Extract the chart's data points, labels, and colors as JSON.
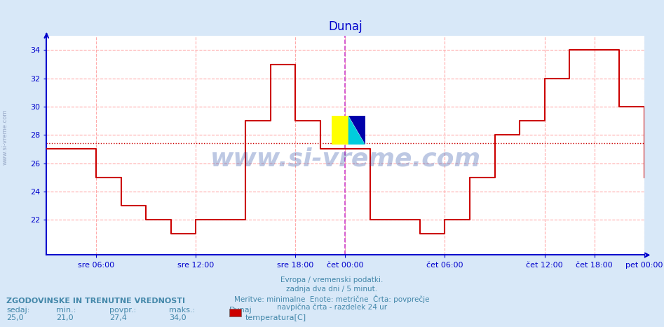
{
  "title": "Dunaj",
  "bg_color": "#d8e8f8",
  "plot_bg_color": "#ffffff",
  "grid_color": "#ffaaaa",
  "line_color": "#cc0000",
  "avg_line_color": "#cc0000",
  "vline_color": "#cc44cc",
  "border_color": "#0000cc",
  "title_color": "#0000cc",
  "tick_color": "#0000cc",
  "label_color": "#4488aa",
  "yticks": [
    22,
    24,
    26,
    28,
    30,
    32,
    34
  ],
  "ylim": [
    19.5,
    35.0
  ],
  "xlim": [
    0,
    576
  ],
  "avg_value": 27.4,
  "xtick_positions": [
    48,
    144,
    240,
    288,
    384,
    480,
    528,
    576
  ],
  "xtick_labels": [
    "sre 06:00",
    "sre 12:00",
    "sre 18:00",
    "čet 00:00",
    "čet 06:00",
    "čet 12:00",
    "čet 18:00",
    "pet 00:00"
  ],
  "vline_pos": 288,
  "watermark": "www.si-vreme.com",
  "footer_lines": [
    "Evropa / vremenski podatki.",
    "zadnja dva dni / 5 minut.",
    "Meritve: minimalne  Enote: metrične  Črta: povprečje",
    "navpična črta - razdelek 24 ur"
  ],
  "legend_title": "ZGODOVINSKE IN TRENUTNE VREDNOSTI",
  "legend_headers": [
    "sedaj:",
    "min.:",
    "povpr.:",
    "maks.:"
  ],
  "legend_values": [
    "25,0",
    "21,0",
    "27,4",
    "34,0"
  ],
  "legend_series": "Dunaj",
  "legend_series_label": "temperatura[C]",
  "legend_series_color": "#cc0000",
  "data_x": [
    0,
    48,
    72,
    96,
    120,
    144,
    192,
    216,
    240,
    264,
    288,
    312,
    336,
    360,
    384,
    408,
    432,
    456,
    480,
    504,
    528,
    552,
    576
  ],
  "data_y": [
    27,
    25,
    23,
    22,
    21,
    22,
    29,
    33,
    29,
    27,
    27,
    22,
    22,
    21,
    22,
    25,
    28,
    29,
    32,
    34,
    34,
    30,
    25
  ]
}
